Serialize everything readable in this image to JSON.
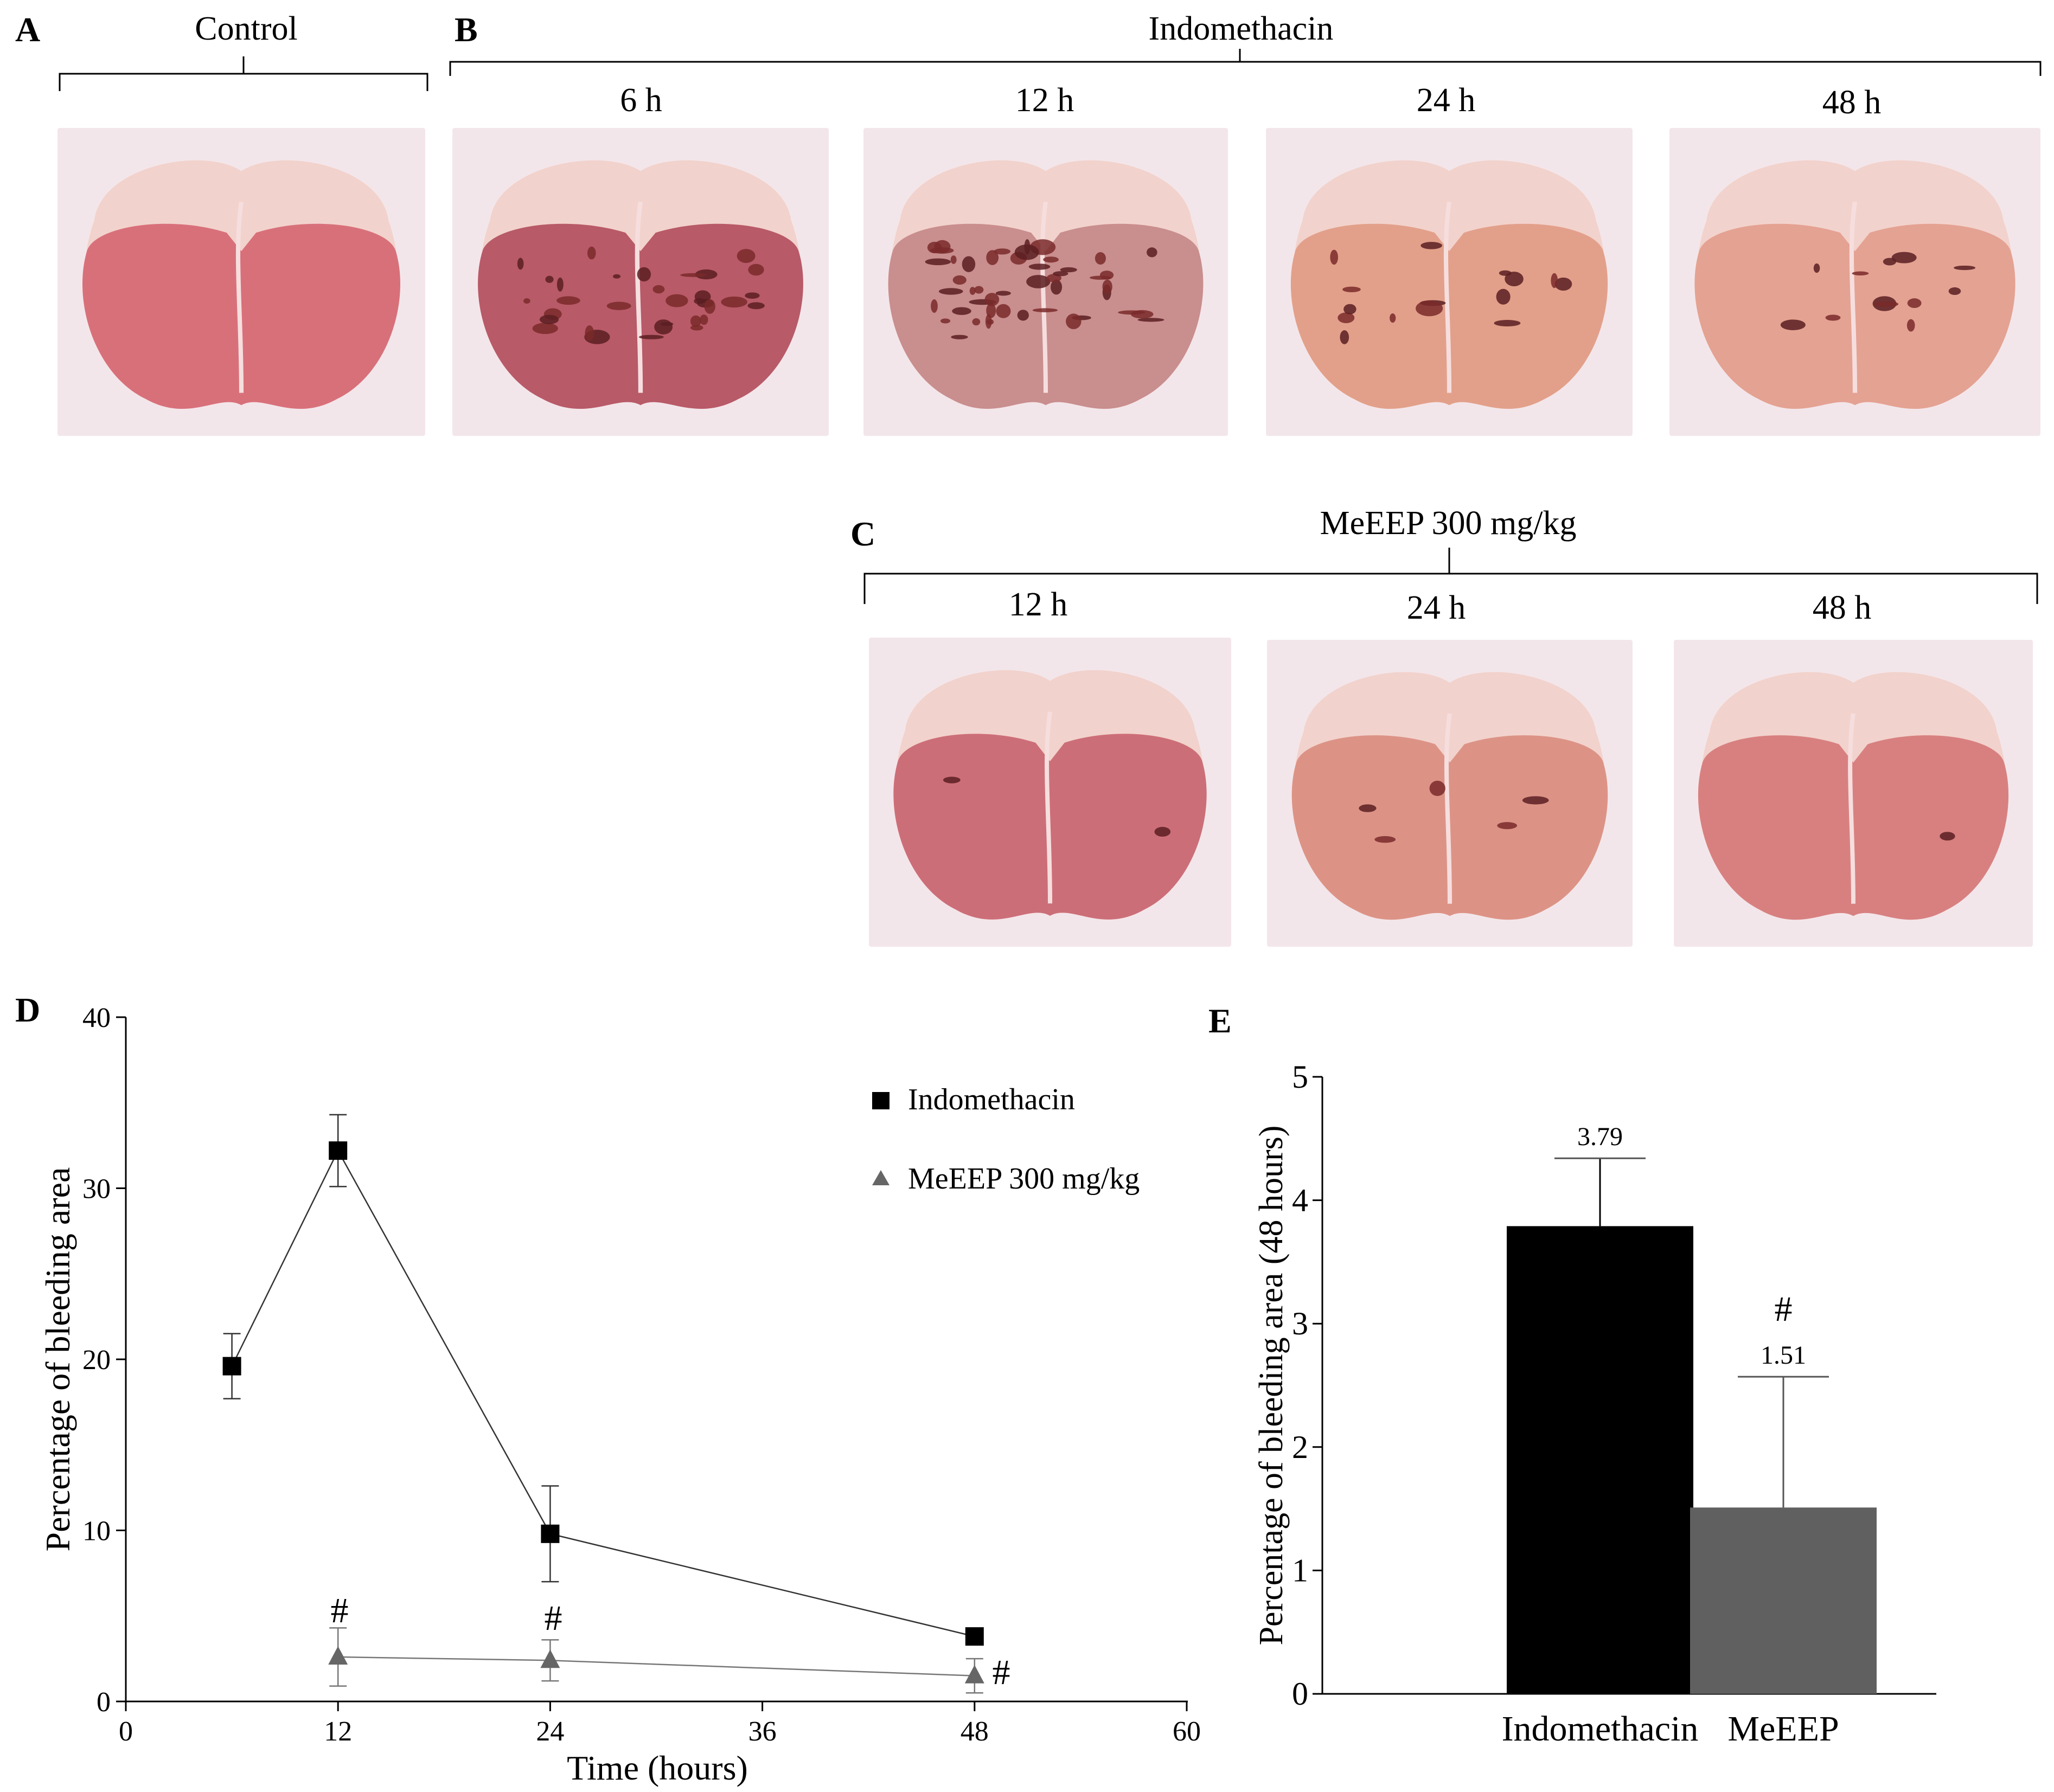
{
  "panels": {
    "a": {
      "letter": "A",
      "title": "Control"
    },
    "b": {
      "letter": "B",
      "title": "Indomethacin",
      "times": [
        "6 h",
        "12 h",
        "24 h",
        "48 h"
      ]
    },
    "c": {
      "letter": "C",
      "title": "MeEEP 300 mg/kg",
      "times": [
        "12 h",
        "24 h",
        "48 h"
      ]
    },
    "d": {
      "letter": "D"
    },
    "e": {
      "letter": "E"
    }
  },
  "photos": {
    "control": {
      "tissue": "#d8707a",
      "bleeding": 0
    },
    "indo_6h": {
      "tissue": "#b85a68",
      "bleeding": 0.55
    },
    "indo_12h": {
      "tissue": "#c98e8e",
      "bleeding": 0.8
    },
    "indo_24h": {
      "tissue": "#e2a08a",
      "bleeding": 0.25
    },
    "indo_48h": {
      "tissue": "#e4a292",
      "bleeding": 0.2
    },
    "meeep_12h": {
      "tissue": "#cc6e78",
      "bleeding": 0.04
    },
    "meeep_24h": {
      "tissue": "#dc9386",
      "bleeding": 0.08
    },
    "meeep_48h": {
      "tissue": "#d88080",
      "bleeding": 0.02
    }
  },
  "chart_data": [
    {
      "type": "line",
      "xlabel": "Time (hours)",
      "ylabel": "Percentage of bleeding area",
      "xlim": [
        0,
        60
      ],
      "ylim": [
        0,
        40
      ],
      "xticks": [
        0,
        12,
        24,
        36,
        48,
        60
      ],
      "yticks": [
        0,
        10,
        20,
        30,
        40
      ],
      "legend_position": "top-right",
      "series": [
        {
          "name": "Indomethacin",
          "marker": "square",
          "color": "#000000",
          "x": [
            6,
            12,
            24,
            48
          ],
          "y": [
            19.6,
            32.2,
            9.8,
            3.8
          ],
          "error": [
            1.9,
            2.1,
            2.8,
            0.4
          ]
        },
        {
          "name": "MeEEP 300 mg/kg",
          "marker": "triangle",
          "color": "#666666",
          "x": [
            12,
            24,
            48
          ],
          "y": [
            2.6,
            2.4,
            1.5
          ],
          "error": [
            1.7,
            1.2,
            1.0
          ]
        }
      ],
      "annotations": [
        "#",
        "#",
        "#"
      ]
    },
    {
      "type": "bar",
      "categories": [
        "Indomethacin",
        "MeEEP"
      ],
      "values": [
        3.79,
        1.51
      ],
      "errors": [
        0.55,
        1.06
      ],
      "colors": [
        "#000000",
        "#606060"
      ],
      "data_labels": [
        "3.79",
        "1.51"
      ],
      "ylabel": "Percentage of bleeding area (48 hours)",
      "ylim": [
        0,
        5
      ],
      "yticks": [
        0,
        1,
        2,
        3,
        4,
        5
      ],
      "annotations": [
        "#"
      ]
    }
  ]
}
